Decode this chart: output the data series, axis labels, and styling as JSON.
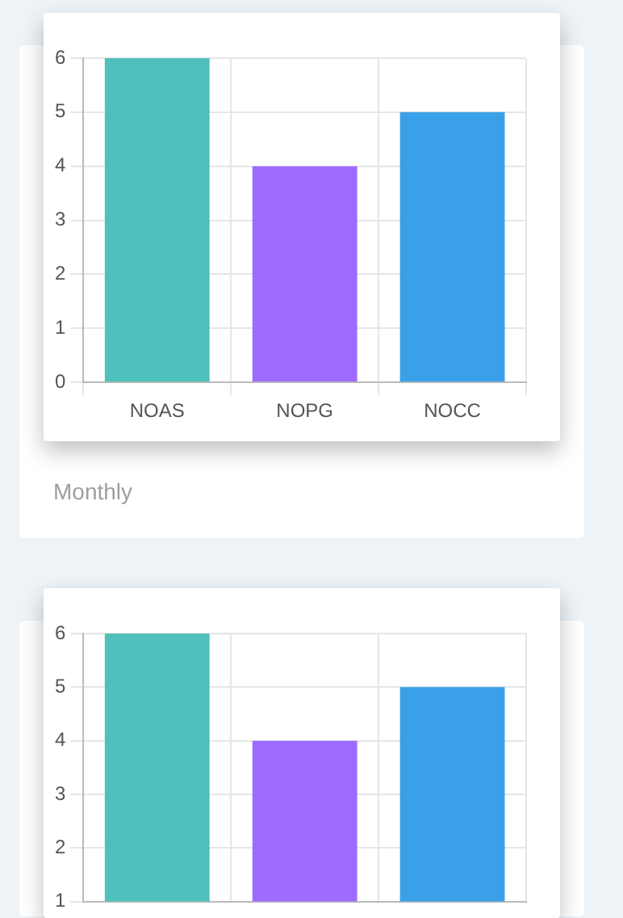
{
  "chart_data": [
    {
      "type": "bar",
      "title": "Monthly",
      "categories": [
        "NOAS",
        "NOPG",
        "NOCC"
      ],
      "values": [
        6,
        4,
        5
      ],
      "colors": [
        "#4fc1bd",
        "#9e6bff",
        "#3aa0e8"
      ],
      "ylim": [
        0,
        6
      ],
      "yticks": [
        0,
        1,
        2,
        3,
        4,
        5,
        6
      ],
      "grid": true
    },
    {
      "type": "bar",
      "categories": [
        null,
        null,
        null
      ],
      "values": [
        6,
        4,
        5
      ],
      "colors": [
        "#4fc1bd",
        "#9e6bff",
        "#3aa0e8"
      ],
      "ylim": [
        1,
        6
      ],
      "yticks": [
        1,
        2,
        3,
        4,
        5,
        6
      ],
      "grid": true,
      "tick_labels": "y"
    }
  ]
}
